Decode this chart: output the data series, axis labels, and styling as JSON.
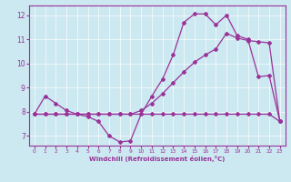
{
  "xlabel": "Windchill (Refroidissement éolien,°C)",
  "bg_color": "#cce8f0",
  "line_color": "#993399",
  "xlim": [
    -0.5,
    23.5
  ],
  "ylim": [
    6.6,
    12.4
  ],
  "yticks": [
    7,
    8,
    9,
    10,
    11,
    12
  ],
  "xticks": [
    0,
    1,
    2,
    3,
    4,
    5,
    6,
    7,
    8,
    9,
    10,
    11,
    12,
    13,
    14,
    15,
    16,
    17,
    18,
    19,
    20,
    21,
    22,
    23
  ],
  "line1_x": [
    0,
    1,
    2,
    3,
    4,
    5,
    6,
    7,
    8,
    9,
    10,
    11,
    12,
    13,
    14,
    15,
    16,
    17,
    18,
    19,
    20,
    21,
    22,
    23
  ],
  "line1_y": [
    7.9,
    8.65,
    8.35,
    8.05,
    7.9,
    7.8,
    7.6,
    7.0,
    6.75,
    6.8,
    7.9,
    8.65,
    9.35,
    10.35,
    11.7,
    12.05,
    12.05,
    11.6,
    12.0,
    11.15,
    11.0,
    9.45,
    9.5,
    7.6
  ],
  "line2_x": [
    0,
    1,
    2,
    3,
    4,
    5,
    6,
    7,
    8,
    9,
    10,
    11,
    12,
    13,
    14,
    15,
    16,
    17,
    18,
    19,
    20,
    21,
    22,
    23
  ],
  "line2_y": [
    7.9,
    7.9,
    7.9,
    7.9,
    7.9,
    7.9,
    7.9,
    7.9,
    7.9,
    7.9,
    8.05,
    8.35,
    8.75,
    9.2,
    9.65,
    10.05,
    10.35,
    10.6,
    11.25,
    11.05,
    10.95,
    10.9,
    10.85,
    7.6
  ],
  "line3_x": [
    0,
    1,
    2,
    3,
    4,
    5,
    6,
    7,
    8,
    9,
    10,
    11,
    12,
    13,
    14,
    15,
    16,
    17,
    18,
    19,
    20,
    21,
    22,
    23
  ],
  "line3_y": [
    7.9,
    7.9,
    7.9,
    7.9,
    7.9,
    7.9,
    7.9,
    7.9,
    7.9,
    7.9,
    7.9,
    7.9,
    7.9,
    7.9,
    7.9,
    7.9,
    7.9,
    7.9,
    7.9,
    7.9,
    7.9,
    7.9,
    7.9,
    7.6
  ]
}
